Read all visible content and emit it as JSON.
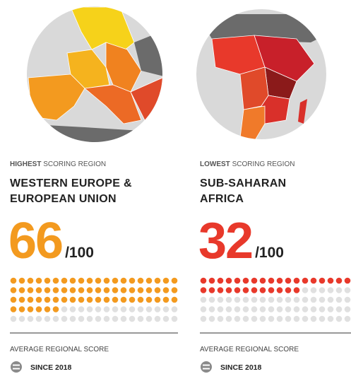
{
  "panels": [
    {
      "label_strong": "HIGHEST",
      "label_rest": "SCORING REGION",
      "region_lines": [
        "WESTERN EUROPE &",
        "EUROPEAN UNION"
      ],
      "score": 66,
      "max": {
        "value": 100,
        "label": "/100"
      },
      "color": "#f39a1f",
      "footer_title": "AVERAGE REGIONAL SCORE",
      "footer_note": "SINCE 2018"
    },
    {
      "label_strong": "LOWEST",
      "label_rest": "SCORING REGION",
      "region_lines": [
        "SUB-SAHARAN",
        "AFRICA"
      ],
      "score": 32,
      "max": {
        "value": 100,
        "label": "/100"
      },
      "color": "#e8392b",
      "footer_title": "AVERAGE REGIONAL SCORE",
      "footer_note": "SINCE 2018"
    }
  ]
}
